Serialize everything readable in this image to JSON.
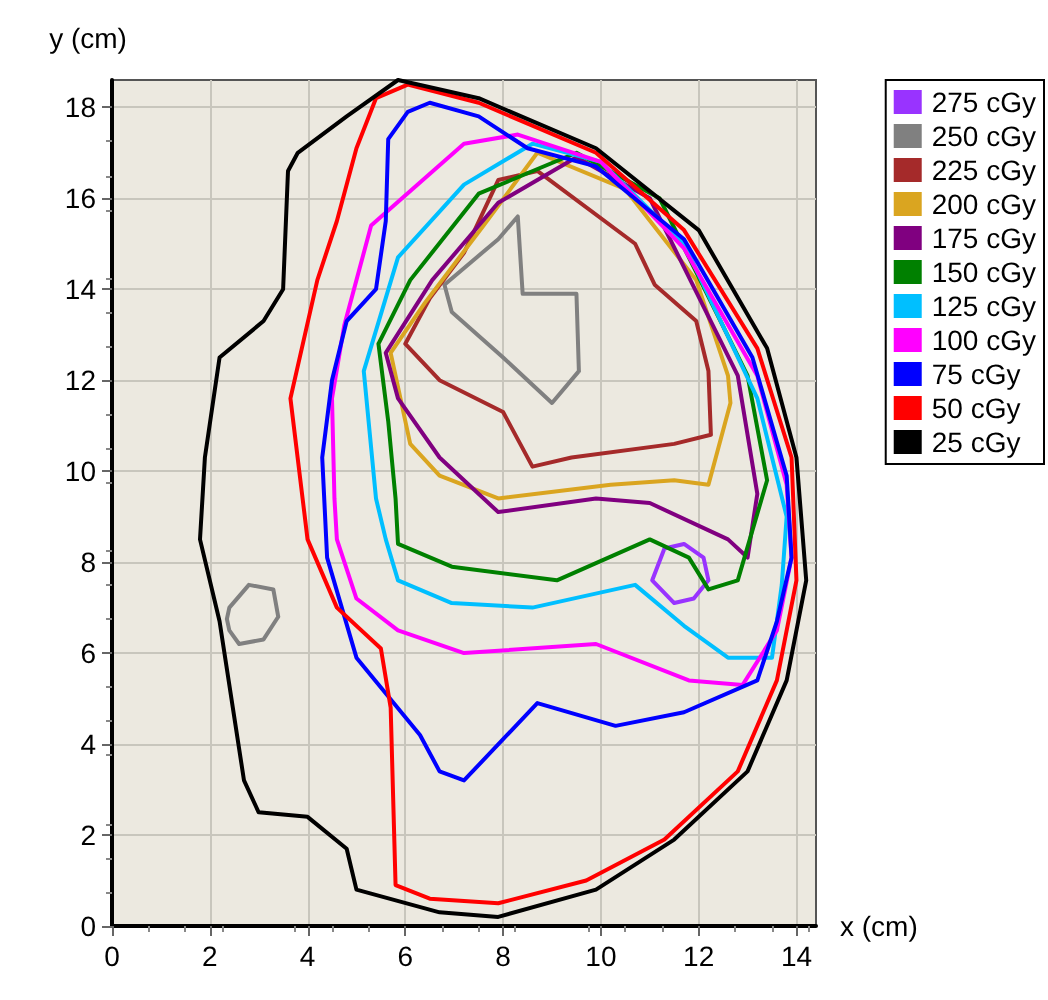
{
  "chart_data": {
    "type": "line",
    "xlabel": "x (cm)",
    "ylabel": "y (cm)",
    "xlim": [
      0,
      14.4
    ],
    "ylim": [
      0,
      18.6
    ],
    "xticks": [
      0,
      2,
      4,
      6,
      8,
      10,
      12,
      14
    ],
    "yticks": [
      0,
      2,
      4,
      6,
      8,
      10,
      12,
      14,
      16,
      18
    ],
    "grid": true,
    "legend": "right",
    "marker": "none",
    "line_style": "solid",
    "series": [
      {
        "name": "275 cGy",
        "color": "#9933ff",
        "x": [
          11.05,
          11.3,
          11.7,
          12.1,
          12.2,
          null,
          11.05,
          11.5,
          11.9,
          12.2
        ],
        "values": [
          7.6,
          8.3,
          8.4,
          8.1,
          7.6,
          null,
          7.6,
          7.1,
          7.2,
          7.6
        ]
      },
      {
        "name": "250 cGy",
        "color": "#808080",
        "x": [
          6.8,
          7.9,
          8.3,
          8.4,
          9.5,
          9.55,
          null,
          6.8,
          6.95,
          8.0,
          9.0,
          9.55,
          null,
          2.35,
          2.4,
          2.8,
          3.3,
          3.4,
          null,
          2.35,
          2.4,
          2.6,
          3.1,
          3.4
        ],
        "values": [
          14.1,
          15.1,
          15.6,
          13.9,
          13.9,
          12.2,
          null,
          14.1,
          13.5,
          12.5,
          11.5,
          12.2,
          null,
          6.75,
          7.0,
          7.5,
          7.4,
          6.8,
          null,
          6.75,
          6.5,
          6.2,
          6.3,
          6.8
        ]
      },
      {
        "name": "225 cGy",
        "color": "#a52a2a",
        "x": [
          6.0,
          6.5,
          7.2,
          7.9,
          8.7,
          10.7,
          11.1,
          11.95,
          12.2,
          12.25,
          null,
          6.0,
          6.7,
          8.0,
          8.6,
          9.4,
          11.5,
          12.25
        ],
        "values": [
          12.8,
          13.8,
          14.8,
          16.4,
          16.6,
          15.0,
          14.1,
          13.3,
          12.2,
          10.8,
          null,
          12.8,
          12.0,
          11.3,
          10.1,
          10.3,
          10.6,
          10.8
        ]
      },
      {
        "name": "200 cGy",
        "color": "#daa520",
        "x": [
          5.7,
          6.4,
          7.6,
          8.7,
          10.5,
          11.95,
          12.6,
          12.65,
          null,
          5.7,
          6.1,
          6.7,
          7.9,
          10.2,
          11.5,
          12.2,
          12.65
        ],
        "values": [
          12.6,
          13.7,
          15.4,
          17.0,
          16.2,
          14.2,
          12.1,
          11.5,
          null,
          12.6,
          10.6,
          9.9,
          9.4,
          9.7,
          9.8,
          9.7,
          11.5
        ]
      },
      {
        "name": "175 cGy",
        "color": "#800080",
        "x": [
          5.6,
          6.55,
          7.9,
          9.5,
          11.0,
          12.8,
          13.2,
          null,
          5.6,
          5.85,
          6.7,
          7.9,
          9.9,
          11.0,
          12.6,
          13.0,
          13.2
        ],
        "values": [
          12.6,
          14.2,
          15.9,
          16.9,
          16.0,
          12.1,
          9.5,
          null,
          12.6,
          11.6,
          10.3,
          9.1,
          9.4,
          9.3,
          8.5,
          8.1,
          9.5
        ]
      },
      {
        "name": "150 cGy",
        "color": "#008000",
        "x": [
          5.45,
          6.1,
          7.5,
          9.5,
          11.2,
          13.0,
          13.4,
          null,
          5.45,
          5.65,
          5.8,
          5.85,
          6.95,
          9.1,
          11.0,
          11.8,
          12.2,
          12.8,
          13.4
        ],
        "values": [
          12.8,
          14.2,
          16.1,
          17.0,
          16.0,
          12.1,
          9.8,
          null,
          12.8,
          11.1,
          9.4,
          8.4,
          7.9,
          7.6,
          8.5,
          8.1,
          7.4,
          7.6,
          9.8
        ]
      },
      {
        "name": "125 cGy",
        "color": "#00bfff",
        "x": [
          5.15,
          5.85,
          7.2,
          8.6,
          10.0,
          11.7,
          13.2,
          13.8,
          null,
          5.15,
          5.4,
          5.6,
          5.85,
          6.95,
          8.6,
          10.7,
          11.7,
          12.6,
          13.5,
          13.7,
          13.8
        ],
        "values": [
          12.2,
          14.7,
          16.3,
          17.2,
          16.8,
          15.0,
          11.6,
          9.0,
          null,
          12.2,
          9.4,
          8.5,
          7.6,
          7.1,
          7.0,
          7.5,
          6.6,
          5.9,
          5.9,
          7.5,
          9.0
        ]
      },
      {
        "name": "100 cGy",
        "color": "#ff00ff",
        "x": [
          4.5,
          4.75,
          5.3,
          7.2,
          8.3,
          10.0,
          11.7,
          13.2,
          13.8,
          13.9,
          null,
          4.5,
          4.55,
          4.6,
          5.0,
          5.85,
          7.2,
          9.9,
          11.8,
          12.9,
          13.6,
          13.9
        ],
        "values": [
          11.6,
          13.2,
          15.4,
          17.2,
          17.4,
          16.8,
          14.9,
          12.1,
          9.7,
          8.1,
          null,
          11.6,
          9.4,
          8.5,
          7.2,
          6.5,
          6.0,
          6.2,
          5.4,
          5.3,
          6.5,
          8.1
        ]
      },
      {
        "name": "75 cGy",
        "color": "#0000ff",
        "x": [
          4.3,
          4.5,
          4.8,
          5.4,
          5.6,
          5.65,
          6.05,
          6.5,
          7.5,
          8.5,
          9.9,
          11.7,
          13.1,
          13.8,
          13.9,
          null,
          4.3,
          4.4,
          5.0,
          6.3,
          6.7,
          7.2,
          8.7,
          10.3,
          11.7,
          13.2,
          13.6,
          13.9
        ],
        "values": [
          10.3,
          12.0,
          13.3,
          14.0,
          15.5,
          17.3,
          17.9,
          18.1,
          17.8,
          17.1,
          16.7,
          15.1,
          12.5,
          9.9,
          8.1,
          null,
          10.3,
          8.1,
          5.9,
          4.2,
          3.4,
          3.2,
          4.9,
          4.4,
          4.7,
          5.4,
          6.7,
          8.1
        ]
      },
      {
        "name": "50 cGy",
        "color": "#ff0000",
        "x": [
          3.65,
          4.2,
          4.6,
          5.0,
          5.4,
          6.05,
          7.5,
          9.9,
          11.7,
          13.2,
          13.9,
          14.0,
          null,
          3.65,
          4.0,
          4.6,
          5.5,
          5.7,
          5.8,
          6.5,
          7.9,
          9.7,
          11.3,
          12.8,
          13.6,
          14.0
        ],
        "values": [
          11.6,
          14.2,
          15.5,
          17.1,
          18.2,
          18.5,
          18.1,
          17.0,
          15.3,
          12.7,
          10.3,
          7.6,
          null,
          11.6,
          8.5,
          7.0,
          6.1,
          4.8,
          0.9,
          0.6,
          0.5,
          1.0,
          1.9,
          3.4,
          5.4,
          7.6
        ]
      },
      {
        "name": "25 cGy",
        "color": "#000000",
        "x": [
          1.8,
          1.9,
          2.2,
          3.1,
          3.5,
          3.6,
          3.8,
          4.8,
          5.85,
          7.5,
          9.9,
          12.0,
          13.4,
          14.0,
          14.2,
          null,
          1.8,
          2.2,
          2.7,
          3.0,
          4.0,
          4.8,
          5.0,
          6.7,
          7.9,
          9.9,
          11.5,
          13.0,
          13.8,
          14.2
        ],
        "values": [
          8.5,
          10.3,
          12.5,
          13.3,
          14.0,
          16.6,
          17.0,
          17.8,
          18.6,
          18.2,
          17.1,
          15.3,
          12.7,
          10.3,
          7.6,
          null,
          8.5,
          6.7,
          3.2,
          2.5,
          2.4,
          1.7,
          0.8,
          0.3,
          0.2,
          0.8,
          1.9,
          3.4,
          5.4,
          7.6
        ]
      }
    ]
  }
}
